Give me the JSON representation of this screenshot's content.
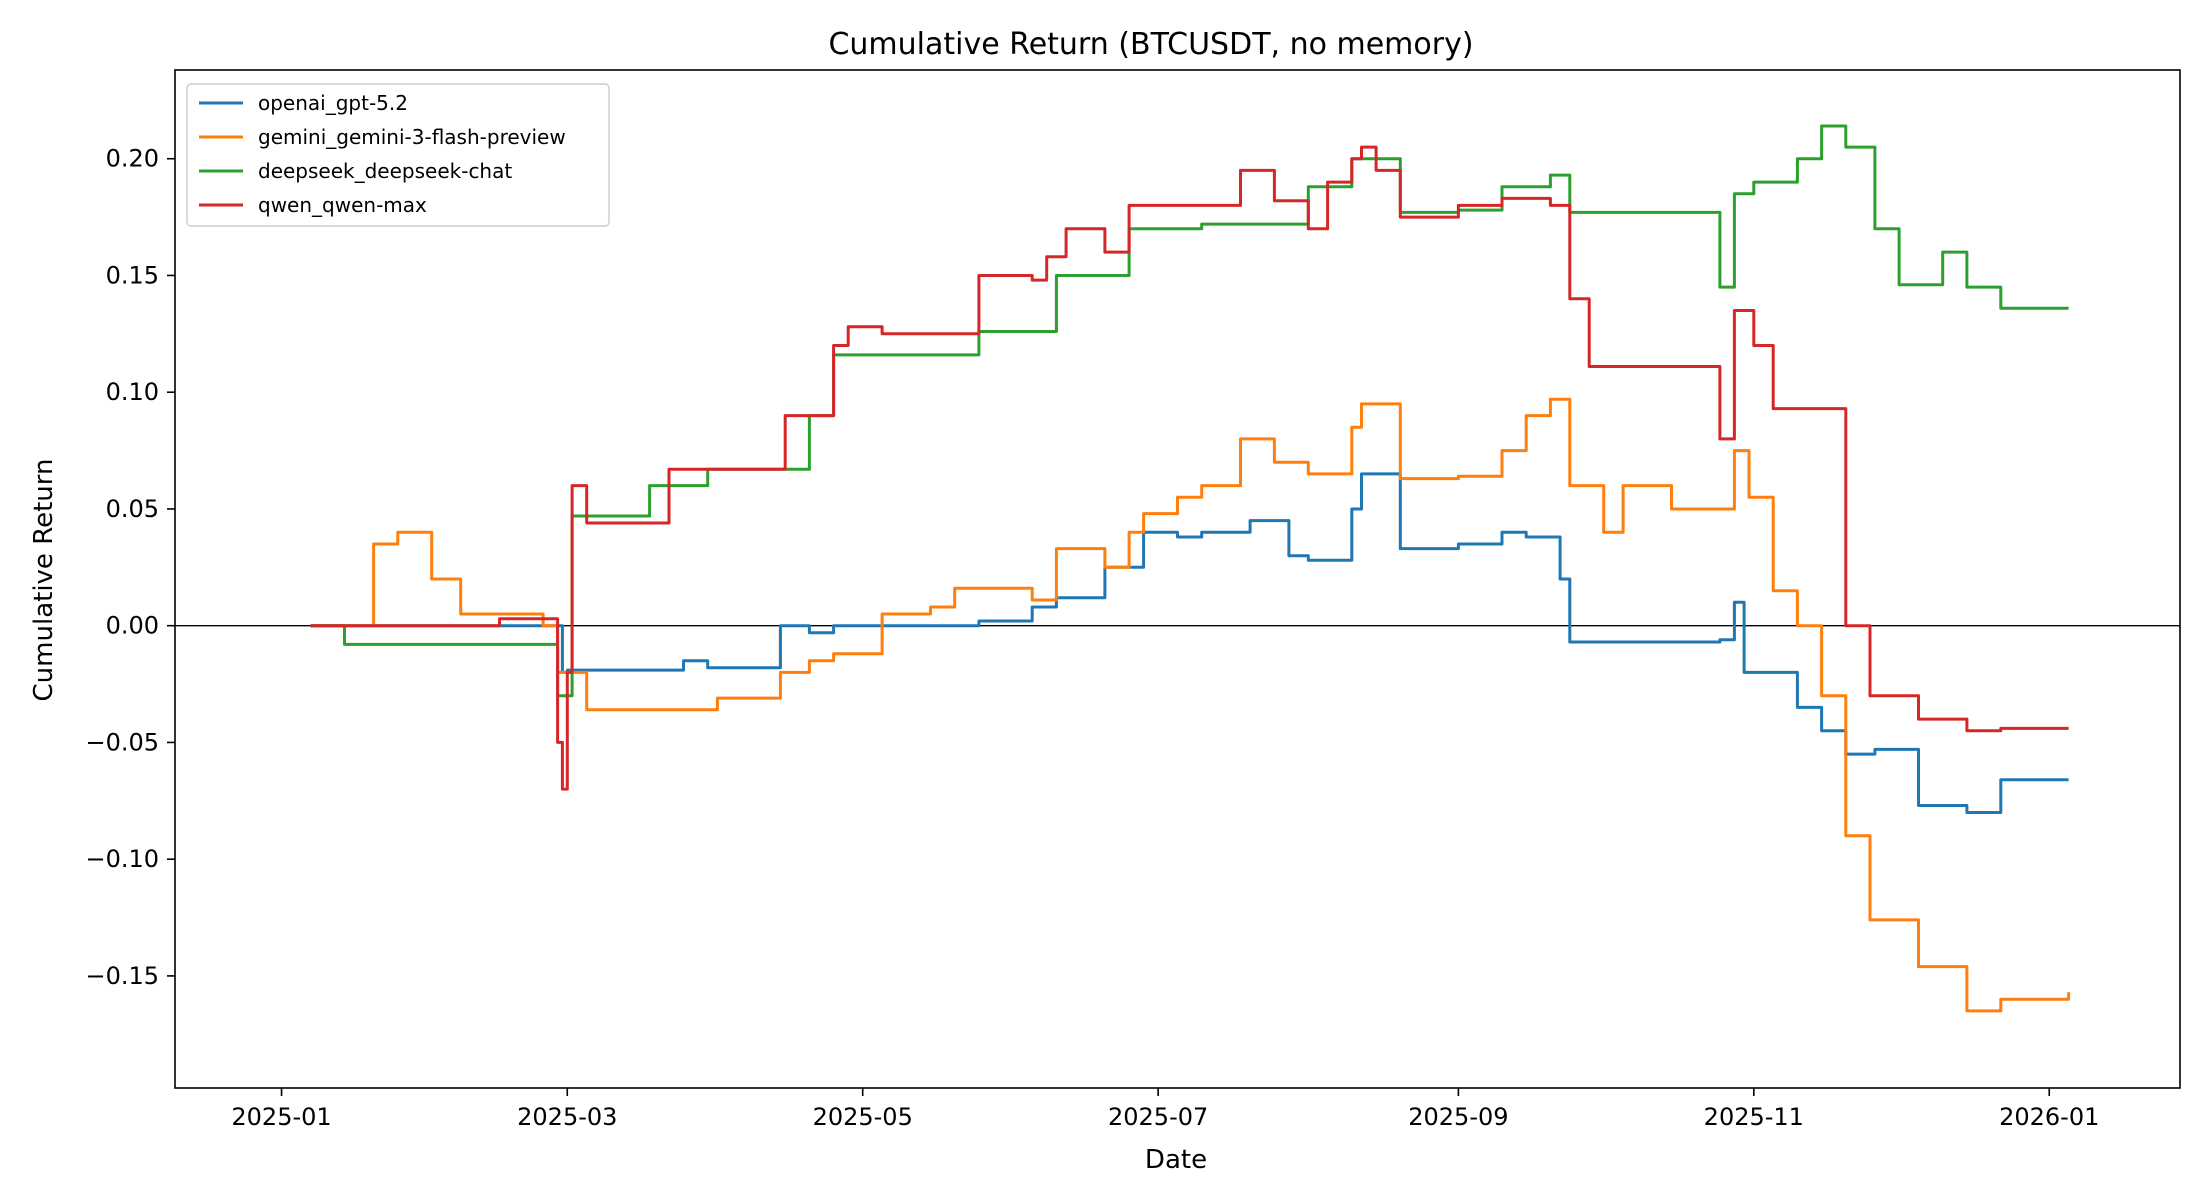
{
  "chart_data": {
    "type": "line",
    "title": "Cumulative Return (BTCUSDT, no memory)",
    "xlabel": "Date",
    "ylabel": "Cumulative Return",
    "x_tick_labels": [
      "2025-01",
      "2025-03",
      "2025-05",
      "2025-07",
      "2025-09",
      "2025-11",
      "2026-01"
    ],
    "x_tick_values": [
      "2025-01-01",
      "2025-03-01",
      "2025-05-01",
      "2025-07-01",
      "2025-09-01",
      "2025-11-01",
      "2026-01-01"
    ],
    "y_ticks": [
      -0.15,
      -0.1,
      -0.05,
      0.0,
      0.05,
      0.1,
      0.15,
      0.2
    ],
    "y_tick_labels": [
      "−0.15",
      "−0.10",
      "−0.05",
      "0.00",
      "0.05",
      "0.10",
      "0.15",
      "0.20"
    ],
    "xlim": [
      "2024-12-10",
      "2026-01-28"
    ],
    "ylim": [
      -0.198,
      0.238
    ],
    "grid": false,
    "zero_line": true,
    "legend_position": "top-left",
    "series": [
      {
        "name": "openai_gpt-5.2",
        "color": "#1f77b4",
        "x": [
          "2025-01-07",
          "2025-02-25",
          "2025-02-28",
          "2025-03-01",
          "2025-03-20",
          "2025-03-25",
          "2025-03-30",
          "2025-04-12",
          "2025-04-14",
          "2025-04-20",
          "2025-04-25",
          "2025-05-10",
          "2025-05-25",
          "2025-06-05",
          "2025-06-08",
          "2025-06-10",
          "2025-06-20",
          "2025-06-25",
          "2025-06-28",
          "2025-07-05",
          "2025-07-10",
          "2025-07-20",
          "2025-07-28",
          "2025-08-01",
          "2025-08-10",
          "2025-08-12",
          "2025-08-20",
          "2025-09-01",
          "2025-09-10",
          "2025-09-15",
          "2025-09-20",
          "2025-09-22",
          "2025-09-24",
          "2025-10-25",
          "2025-10-28",
          "2025-10-30",
          "2025-11-05",
          "2025-11-10",
          "2025-11-15",
          "2025-11-20",
          "2025-11-26",
          "2025-12-05",
          "2025-12-15",
          "2025-12-22",
          "2026-01-05"
        ],
        "y": [
          0.0,
          0.0,
          -0.02,
          -0.019,
          -0.019,
          -0.015,
          -0.018,
          -0.018,
          0.0,
          -0.003,
          0.0,
          0.0,
          0.002,
          0.008,
          0.008,
          0.012,
          0.025,
          0.025,
          0.04,
          0.038,
          0.04,
          0.045,
          0.03,
          0.028,
          0.05,
          0.065,
          0.033,
          0.035,
          0.04,
          0.038,
          0.038,
          0.02,
          -0.007,
          -0.006,
          0.01,
          -0.02,
          -0.02,
          -0.035,
          -0.045,
          -0.055,
          -0.053,
          -0.077,
          -0.08,
          -0.066,
          -0.066
        ]
      },
      {
        "name": "gemini_gemini-3-flash-preview",
        "color": "#ff7f0e",
        "x": [
          "2025-01-07",
          "2025-01-15",
          "2025-01-20",
          "2025-01-25",
          "2025-02-01",
          "2025-02-07",
          "2025-02-15",
          "2025-02-24",
          "2025-02-27",
          "2025-03-01",
          "2025-03-05",
          "2025-03-25",
          "2025-04-01",
          "2025-04-12",
          "2025-04-14",
          "2025-04-20",
          "2025-04-25",
          "2025-05-05",
          "2025-05-15",
          "2025-05-20",
          "2025-06-05",
          "2025-06-10",
          "2025-06-20",
          "2025-06-25",
          "2025-06-28",
          "2025-07-05",
          "2025-07-10",
          "2025-07-18",
          "2025-07-25",
          "2025-08-01",
          "2025-08-10",
          "2025-08-12",
          "2025-08-20",
          "2025-09-01",
          "2025-09-10",
          "2025-09-15",
          "2025-09-20",
          "2025-09-24",
          "2025-10-01",
          "2025-10-05",
          "2025-10-15",
          "2025-10-25",
          "2025-10-28",
          "2025-10-31",
          "2025-11-05",
          "2025-11-10",
          "2025-11-15",
          "2025-11-20",
          "2025-11-25",
          "2025-12-05",
          "2025-12-15",
          "2025-12-22",
          "2026-01-05"
        ],
        "y": [
          0.0,
          0.0,
          0.035,
          0.04,
          0.02,
          0.005,
          0.005,
          0.0,
          -0.02,
          -0.02,
          -0.036,
          -0.036,
          -0.031,
          -0.031,
          -0.02,
          -0.015,
          -0.012,
          0.005,
          0.008,
          0.016,
          0.011,
          0.033,
          0.025,
          0.04,
          0.048,
          0.055,
          0.06,
          0.08,
          0.07,
          0.065,
          0.085,
          0.095,
          0.063,
          0.064,
          0.075,
          0.09,
          0.097,
          0.06,
          0.04,
          0.06,
          0.05,
          0.05,
          0.075,
          0.055,
          0.015,
          0.0,
          -0.03,
          -0.09,
          -0.126,
          -0.146,
          -0.165,
          -0.16,
          -0.157
        ]
      },
      {
        "name": "deepseek_deepseek-chat",
        "color": "#2ca02c",
        "x": [
          "2025-01-07",
          "2025-01-11",
          "2025-01-14",
          "2025-02-20",
          "2025-02-27",
          "2025-03-02",
          "2025-03-15",
          "2025-03-18",
          "2025-03-30",
          "2025-04-12",
          "2025-04-20",
          "2025-04-25",
          "2025-05-20",
          "2025-05-25",
          "2025-06-05",
          "2025-06-10",
          "2025-06-20",
          "2025-06-25",
          "2025-07-10",
          "2025-07-25",
          "2025-08-01",
          "2025-08-10",
          "2025-08-20",
          "2025-09-01",
          "2025-09-10",
          "2025-09-20",
          "2025-09-24",
          "2025-10-20",
          "2025-10-25",
          "2025-10-28",
          "2025-11-01",
          "2025-11-05",
          "2025-11-10",
          "2025-11-15",
          "2025-11-20",
          "2025-11-26",
          "2025-12-01",
          "2025-12-10",
          "2025-12-15",
          "2025-12-22",
          "2026-01-05"
        ],
        "y": [
          0.0,
          0.0,
          -0.008,
          -0.008,
          -0.03,
          0.047,
          0.047,
          0.06,
          0.067,
          0.067,
          0.09,
          0.116,
          0.116,
          0.126,
          0.126,
          0.15,
          0.15,
          0.17,
          0.172,
          0.172,
          0.188,
          0.2,
          0.177,
          0.178,
          0.188,
          0.193,
          0.177,
          0.177,
          0.145,
          0.185,
          0.19,
          0.19,
          0.2,
          0.214,
          0.205,
          0.17,
          0.146,
          0.16,
          0.145,
          0.136,
          0.136
        ]
      },
      {
        "name": "qwen_qwen-max",
        "color": "#d62728",
        "x": [
          "2025-01-07",
          "2025-02-12",
          "2025-02-15",
          "2025-02-25",
          "2025-02-27",
          "2025-02-28",
          "2025-03-01",
          "2025-03-02",
          "2025-03-05",
          "2025-03-18",
          "2025-03-22",
          "2025-04-12",
          "2025-04-15",
          "2025-04-20",
          "2025-04-25",
          "2025-04-28",
          "2025-05-05",
          "2025-05-20",
          "2025-05-25",
          "2025-06-05",
          "2025-06-08",
          "2025-06-12",
          "2025-06-20",
          "2025-06-25",
          "2025-07-05",
          "2025-07-12",
          "2025-07-18",
          "2025-07-25",
          "2025-08-01",
          "2025-08-05",
          "2025-08-10",
          "2025-08-12",
          "2025-08-15",
          "2025-08-20",
          "2025-09-01",
          "2025-09-10",
          "2025-09-20",
          "2025-09-24",
          "2025-09-28",
          "2025-10-20",
          "2025-10-25",
          "2025-10-28",
          "2025-11-01",
          "2025-11-05",
          "2025-11-15",
          "2025-11-20",
          "2025-11-25",
          "2025-12-05",
          "2025-12-15",
          "2025-12-22",
          "2026-01-05"
        ],
        "y": [
          0.0,
          0.0,
          0.003,
          0.003,
          -0.05,
          -0.07,
          -0.02,
          0.06,
          0.044,
          0.044,
          0.067,
          0.067,
          0.09,
          0.09,
          0.12,
          0.128,
          0.125,
          0.125,
          0.15,
          0.148,
          0.158,
          0.17,
          0.16,
          0.18,
          0.18,
          0.18,
          0.195,
          0.182,
          0.17,
          0.19,
          0.2,
          0.205,
          0.195,
          0.175,
          0.18,
          0.183,
          0.18,
          0.14,
          0.111,
          0.111,
          0.08,
          0.135,
          0.12,
          0.093,
          0.093,
          0.0,
          -0.03,
          -0.04,
          -0.045,
          -0.044,
          -0.044
        ]
      }
    ]
  }
}
